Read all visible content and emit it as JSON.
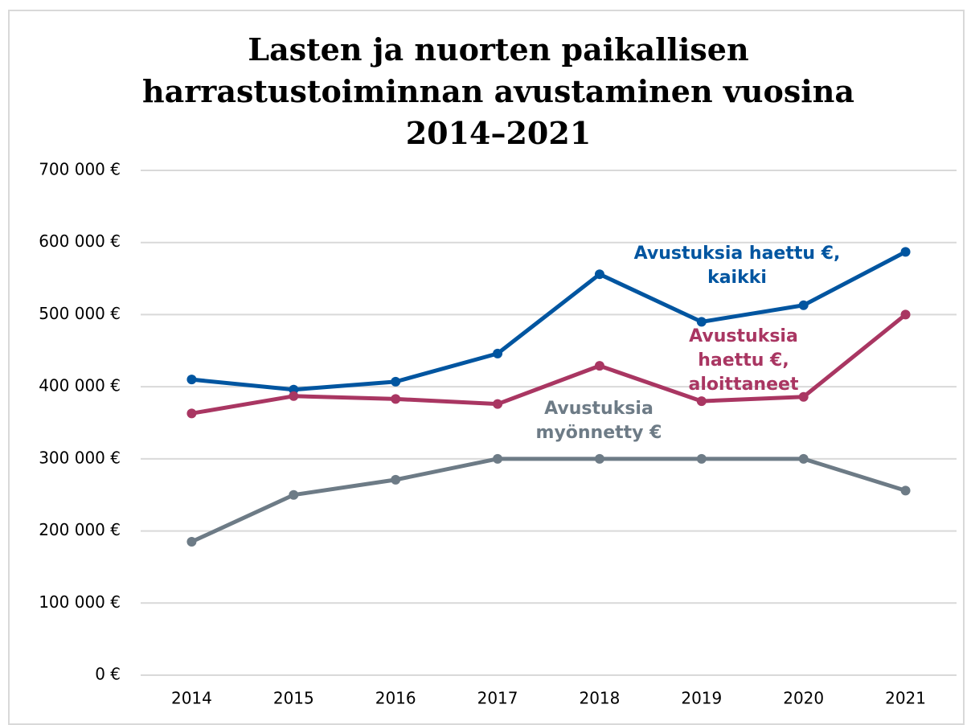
{
  "chart_data": {
    "type": "line",
    "title": "Lasten ja nuorten paikallisen harrastustoiminnan avustaminen vuosina 2014–2021",
    "categories": [
      "2014",
      "2015",
      "2016",
      "2017",
      "2018",
      "2019",
      "2020",
      "2021"
    ],
    "series": [
      {
        "name": "Avustuksia haettu €, kaikki",
        "color": "#0055a0",
        "values": [
          410000,
          396000,
          407000,
          446000,
          556000,
          490000,
          513000,
          587000
        ]
      },
      {
        "name": "Avustuksia haettu €, aloittaneet",
        "color": "#a93662",
        "values": [
          363000,
          387000,
          383000,
          376000,
          429000,
          380000,
          386000,
          500000
        ]
      },
      {
        "name": "Avustuksia myönnetty €",
        "color": "#6d7b86",
        "values": [
          185000,
          250000,
          271000,
          300000,
          300000,
          300000,
          300000,
          256000
        ]
      }
    ],
    "ylim": [
      0,
      700000
    ],
    "yticks": [
      {
        "value": 0,
        "label": "0 €"
      },
      {
        "value": 100000,
        "label": "100 000 €"
      },
      {
        "value": 200000,
        "label": "200 000 €"
      },
      {
        "value": 300000,
        "label": "300 000 €"
      },
      {
        "value": 400000,
        "label": "400 000 €"
      },
      {
        "value": 500000,
        "label": "500 000 €"
      },
      {
        "value": 600000,
        "label": "600 000 €"
      },
      {
        "value": 700000,
        "label": "700 000 €"
      }
    ],
    "grid": true
  }
}
